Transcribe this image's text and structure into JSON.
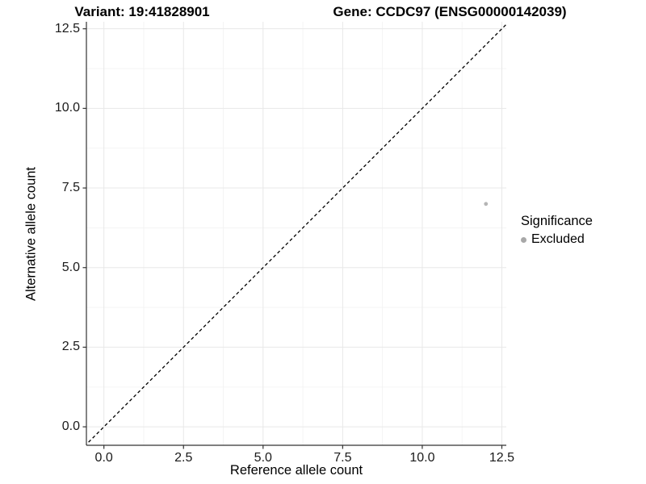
{
  "header": {
    "variant_title": "Variant: 19:41828901",
    "gene_title": "Gene: CCDC97 (ENSG00000142039)"
  },
  "chart_data": {
    "type": "scatter",
    "title": "Variant: 19:41828901 / Gene: CCDC97 (ENSG00000142039)",
    "xlabel": "Reference allele count",
    "ylabel": "Alternative allele count",
    "xlim": [
      -0.55,
      12.64
    ],
    "ylim": [
      -0.58,
      12.72
    ],
    "x_ticks": {
      "values": [
        0,
        2.5,
        5,
        7.5,
        10,
        12.5
      ],
      "labels": [
        "0.0",
        "2.5",
        "5.0",
        "7.5",
        "10.0",
        "12.5"
      ]
    },
    "y_ticks": {
      "values": [
        0,
        2.5,
        5,
        7.5,
        10,
        12.5
      ],
      "labels": [
        "0.0",
        "2.5",
        "5.0",
        "7.5",
        "10.0",
        "12.5"
      ]
    },
    "x_minor_ticks": [
      1.25,
      3.75,
      6.25,
      8.75,
      11.25
    ],
    "y_minor_ticks": [
      1.25,
      3.75,
      6.25,
      8.75,
      11.25
    ],
    "grid": true,
    "identity_line": {
      "equation": "y = x",
      "style": "dashed",
      "color": "#000000"
    },
    "series": [
      {
        "name": "Excluded",
        "color": "#b5b5b5",
        "points": [
          [
            12,
            7
          ]
        ]
      }
    ],
    "legend": {
      "title": "Significance",
      "position": "right",
      "items": [
        {
          "label": "Excluded",
          "color": "#a8a8a8",
          "marker": "circle"
        }
      ]
    }
  },
  "colors": {
    "background": "#ffffff",
    "axis_line": "#333333",
    "tick_mark": "#333333",
    "grid_major": "#e8e8e8",
    "grid_minor": "#f3f3f3",
    "text": "#000000",
    "tick_label": "#1a1a1a"
  }
}
